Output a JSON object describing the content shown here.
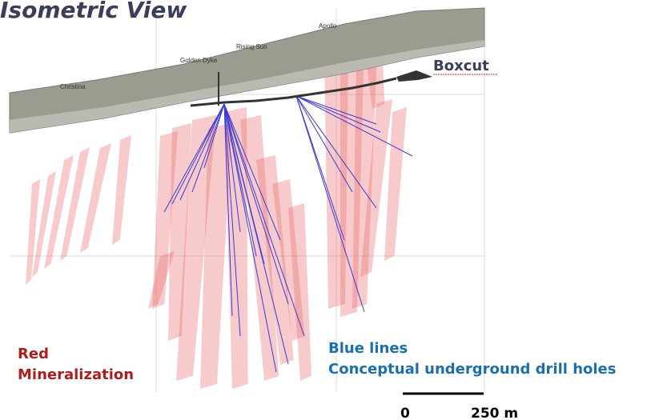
{
  "title": "Isometric View",
  "places": [
    "Christina",
    "Golden Dyke",
    "Rising Sun",
    "Apollo"
  ],
  "boxcut": "Boxcut",
  "legend": {
    "red": [
      "Red",
      "Mineralization"
    ],
    "blue": [
      "Blue lines",
      "Conceptual underground drill holes"
    ]
  },
  "scale": {
    "start": "0",
    "end": "250 m"
  }
}
